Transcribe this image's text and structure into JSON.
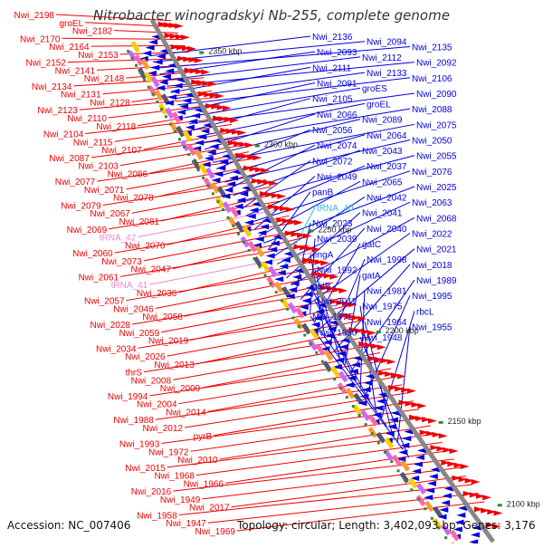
{
  "title": "Nitrobacter winogradskyi Nb-255, complete genome",
  "accession": "Accession: NC_007406",
  "info": "Topology: circular; Length: 3,402,093 bp; Genes: 3,176",
  "colors": {
    "forward": "#ee0000",
    "reverse": "#0000dd",
    "trna": "#ee88cc",
    "trna_cyan": "#33bbdd",
    "backbone": "#888888",
    "tick": "#2e8b2e"
  },
  "scale_labels": [
    "2350 kbp",
    "2300 kbp",
    "2250 kbp",
    "2200 kbp",
    "2150 kbp",
    "2100 kbp"
  ],
  "labels_left": [
    "Nwi_2198",
    "groEL",
    "Nwi_2182",
    "Nwi_2170",
    "Nwi_2164",
    "Nwi_2153",
    "Nwi_2152",
    "Nwi_2141",
    "Nwi_2148",
    "Nwi_2134",
    "Nwi_2131",
    "Nwi_2128",
    "Nwi_2123",
    "Nwi_2110",
    "Nwi_2118",
    "Nwi_2104",
    "Nwi_2115",
    "Nwi_2107",
    "Nwi_2087",
    "Nwi_2103",
    "Nwi_2086",
    "Nwi_2077",
    "Nwi_2071",
    "Nwi_2078",
    "Nwi_2079",
    "Nwi_2067",
    "Nwi_2081",
    "Nwi_2069",
    "tRNA_42",
    "Nwi_2070",
    "Nwi_2060",
    "Nwi_2073",
    "Nwi_2047",
    "Nwi_2061",
    "tRNA_41",
    "Nwi_2036",
    "Nwi_2057",
    "Nwi_2046",
    "Nwi_2058",
    "Nwi_2028",
    "Nwi_2059",
    "Nwi_2019",
    "Nwi_2034",
    "Nwi_2026",
    "Nwi_2013",
    "thrS",
    "Nwi_2008",
    "Nwi_2009",
    "Nwi_1994",
    "Nwi_2004",
    "Nwi_2014",
    "Nwi_1988",
    "Nwi_2012",
    "pyrB",
    "Nwi_1993",
    "Nwi_1972",
    "Nwi_2010",
    "Nwi_2015",
    "Nwi_1968",
    "Nwi_1966",
    "Nwi_2016",
    "Nwi_1949",
    "Nwi_2017",
    "Nwi_1958",
    "Nwi_1947",
    "Nwi_1969"
  ],
  "labels_right": [
    "Nwi_2136",
    "Nwi_2094",
    "Nwi_2135",
    "Nwi_2093",
    "Nwi_2112",
    "Nwi_2092",
    "Nwi_2111",
    "Nwi_2133",
    "Nwi_2106",
    "Nwi_2091",
    "groES",
    "Nwi_2090",
    "Nwi_2105",
    "groEL",
    "Nwi_2088",
    "Nwi_2066",
    "Nwi_2089",
    "Nwi_2075",
    "Nwi_2056",
    "Nwi_2064",
    "Nwi_2050",
    "Nwi_2074",
    "Nwi_2043",
    "Nwi_2055",
    "Nwi_2072",
    "Nwi_2037",
    "Nwi_2076",
    "Nwi_2049",
    "Nwi_2065",
    "Nwi_2025",
    "panB",
    "Nwi_2042",
    "Nwi_2063",
    "tRNA_40",
    "Nwi_2041",
    "Nwi_2068",
    "Nwi_2023",
    "Nwi_2040",
    "Nwi_2022",
    "Nwi_2039",
    "gatC",
    "Nwi_2021",
    "engA",
    "Nwi_1998",
    "Nwi_2018",
    "Nwi_1992",
    "gatA",
    "Nwi_1989",
    "gatB",
    "Nwi_1981",
    "Nwi_1995",
    "Nwi_2011",
    "Nwi_1975",
    "rbcL",
    "Nwi_1971",
    "Nwi_1964",
    "Nwi_1955",
    "Nwi_1950",
    "Nwi_1948"
  ]
}
